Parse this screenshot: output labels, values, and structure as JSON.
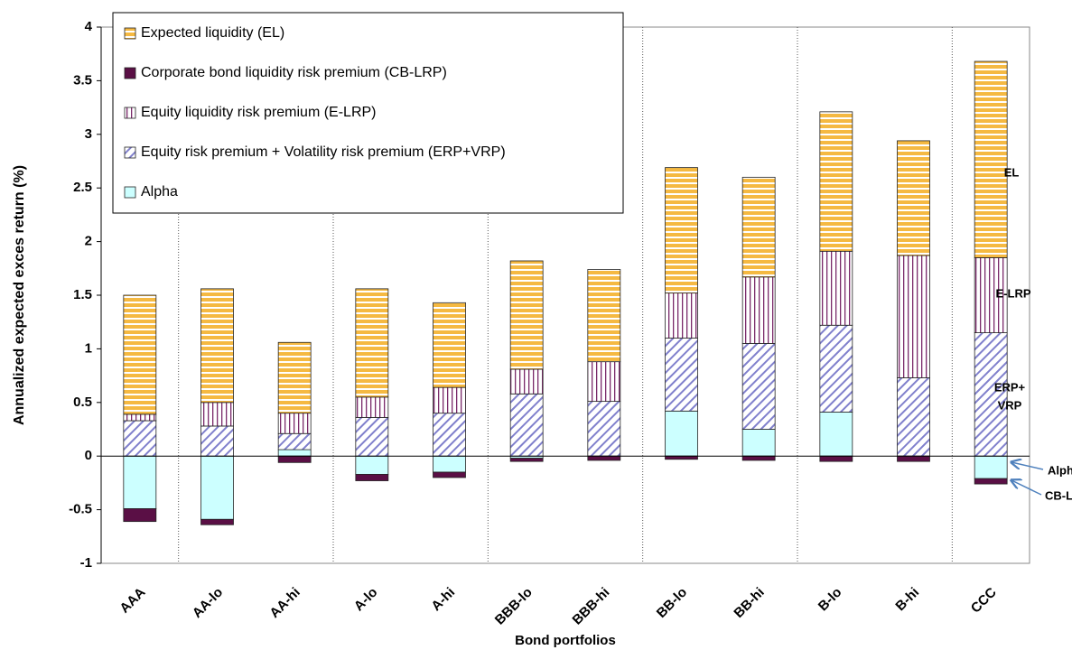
{
  "chart_data": {
    "type": "stacked-bar",
    "y_label": "Annualized expected exces return (%)",
    "x_label": "Bond portfolios",
    "categories": [
      "AAA",
      "AA-lo",
      "AA-hi",
      "A-lo",
      "A-hi",
      "BBB-lo",
      "BBB-hi",
      "BB-lo",
      "BB-hi",
      "B-lo",
      "B-hi",
      "CCC"
    ],
    "series": [
      {
        "name": "Expected liquidity (EL)",
        "color": "#f5b942",
        "values": [
          1.11,
          1.06,
          0.66,
          1.01,
          0.79,
          1.01,
          0.86,
          1.17,
          0.93,
          1.3,
          1.07,
          1.83
        ]
      },
      {
        "name": "Corporate bond liquidity risk premium (CB-LRP)",
        "color": "#5a0f45",
        "values": [
          -0.12,
          -0.05,
          -0.06,
          -0.06,
          -0.05,
          -0.03,
          -0.04,
          -0.03,
          -0.04,
          -0.05,
          -0.05,
          -0.05
        ]
      },
      {
        "name": "Equity liquidity risk premium (E-LRP)",
        "color": "#7a2a6a",
        "values": [
          0.06,
          0.22,
          0.19,
          0.19,
          0.24,
          0.23,
          0.37,
          0.42,
          0.62,
          0.69,
          1.14,
          0.7
        ]
      },
      {
        "name": "Equity risk premium + Volatility risk premium (ERP+VRP)",
        "color": "#8080cc",
        "values": [
          0.33,
          0.28,
          0.15,
          0.36,
          0.4,
          0.58,
          0.51,
          0.68,
          0.8,
          0.81,
          0.73,
          1.15
        ]
      },
      {
        "name": "Alpha",
        "color": "#ccffff",
        "values": [
          -0.49,
          -0.59,
          0.06,
          -0.17,
          -0.15,
          -0.02,
          0,
          0.42,
          0.25,
          0.41,
          0,
          -0.21
        ]
      }
    ],
    "ylim": [
      -1,
      4
    ],
    "yticks": [
      -1,
      -0.5,
      0,
      0.5,
      1,
      1.5,
      2,
      2.5,
      3,
      3.5,
      4
    ],
    "annotations": [
      "EL",
      "E-LRP",
      "ERP+",
      "VRP",
      "Alpha",
      "CB-LRP"
    ],
    "legend": "top-left"
  }
}
